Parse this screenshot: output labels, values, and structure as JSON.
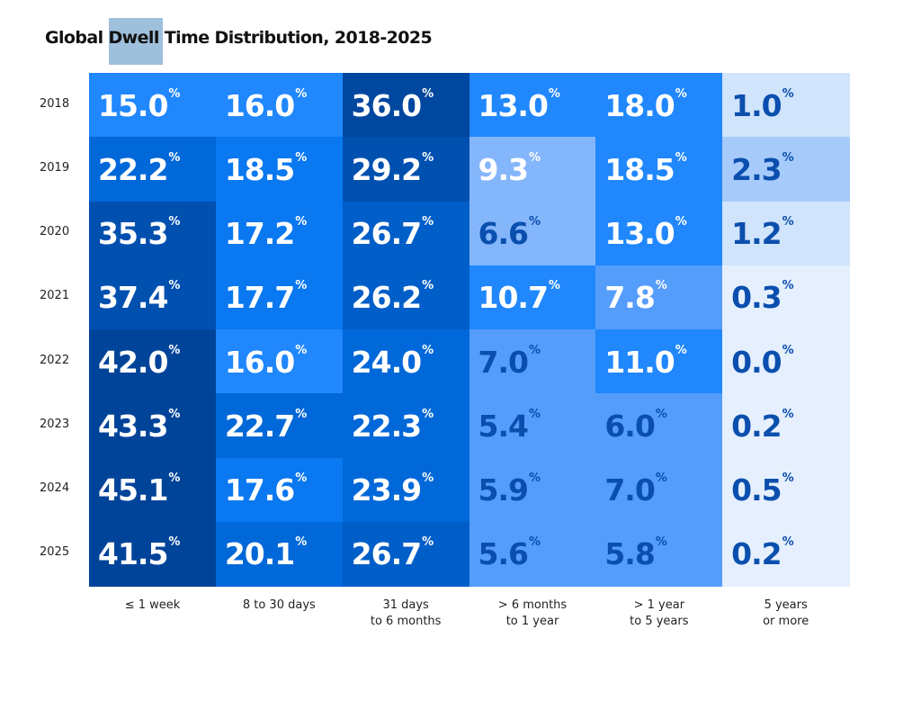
{
  "chart_data": {
    "type": "heatmap",
    "title_parts": [
      "Global ",
      "Dwell",
      " Time Distribution, 2018-2025"
    ],
    "rows": [
      "2018",
      "2019",
      "2020",
      "2021",
      "2022",
      "2023",
      "2024",
      "2025"
    ],
    "columns": [
      [
        "≤ 1 week"
      ],
      [
        "8 to 30 days"
      ],
      [
        "31 days",
        "to 6 months"
      ],
      [
        "> 6 months",
        "to 1 year"
      ],
      [
        "> 1 year",
        "to 5 years"
      ],
      [
        "5 years",
        "or more"
      ]
    ],
    "unit": "%",
    "values": [
      [
        15.0,
        16.0,
        36.0,
        13.0,
        18.0,
        1.0
      ],
      [
        22.2,
        18.5,
        29.2,
        9.3,
        18.5,
        2.3
      ],
      [
        35.3,
        17.2,
        26.7,
        6.6,
        13.0,
        1.2
      ],
      [
        37.4,
        17.7,
        26.2,
        10.7,
        7.8,
        0.3
      ],
      [
        42.0,
        16.0,
        24.0,
        7.0,
        11.0,
        0.0
      ],
      [
        43.3,
        22.7,
        22.3,
        5.4,
        6.0,
        0.2
      ],
      [
        45.1,
        17.6,
        23.9,
        5.9,
        7.0,
        0.5
      ],
      [
        41.5,
        20.1,
        26.7,
        5.6,
        5.8,
        0.2
      ]
    ],
    "fills": [
      [
        "#2087fc",
        "#2087fc",
        "#00479f",
        "#2087fc",
        "#2087fc",
        "#d0e4fb"
      ],
      [
        "#0068d8",
        "#0a78f0",
        "#0050b0",
        "#84b6fb",
        "#2087fc",
        "#a6cafa"
      ],
      [
        "#0050b0",
        "#0a78f0",
        "#005ec8",
        "#84b6fb",
        "#2087fc",
        "#d0e4fb"
      ],
      [
        "#0050b0",
        "#0a78f0",
        "#005ec8",
        "#2087fc",
        "#559dfb",
        "#e5effd"
      ],
      [
        "#00449a",
        "#2087fc",
        "#0068d8",
        "#559dfb",
        "#2087fc",
        "#e5effd"
      ],
      [
        "#00449a",
        "#0068d8",
        "#0068d8",
        "#559dfb",
        "#559dfb",
        "#e5effd"
      ],
      [
        "#00449a",
        "#0a78f0",
        "#0068d8",
        "#559dfb",
        "#559dfb",
        "#e5effd"
      ],
      [
        "#00449a",
        "#0068d8",
        "#005ec8",
        "#559dfb",
        "#559dfb",
        "#e5effd"
      ]
    ],
    "label_colors": [
      [
        "#ffffff",
        "#ffffff",
        "#ffffff",
        "#ffffff",
        "#ffffff",
        "#0a4fae"
      ],
      [
        "#ffffff",
        "#ffffff",
        "#ffffff",
        "#ffffff",
        "#ffffff",
        "#0a4fae"
      ],
      [
        "#ffffff",
        "#ffffff",
        "#ffffff",
        "#0a4fae",
        "#ffffff",
        "#0a4fae"
      ],
      [
        "#ffffff",
        "#ffffff",
        "#ffffff",
        "#ffffff",
        "#ffffff",
        "#0a4fae"
      ],
      [
        "#ffffff",
        "#ffffff",
        "#ffffff",
        "#0a4fae",
        "#ffffff",
        "#0a4fae"
      ],
      [
        "#ffffff",
        "#ffffff",
        "#ffffff",
        "#0a4fae",
        "#0a4fae",
        "#0a4fae"
      ],
      [
        "#ffffff",
        "#ffffff",
        "#ffffff",
        "#0a4fae",
        "#0a4fae",
        "#0a4fae"
      ],
      [
        "#ffffff",
        "#ffffff",
        "#ffffff",
        "#0a4fae",
        "#0a4fae",
        "#0a4fae"
      ]
    ],
    "title_highlight_color": "#9fc0dc"
  }
}
